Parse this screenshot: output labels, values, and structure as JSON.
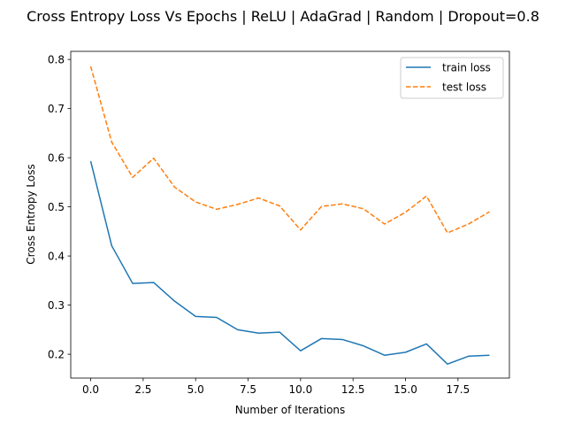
{
  "chart_data": {
    "type": "line",
    "title": "Cross Entropy Loss Vs Epochs | ReLU | AdaGrad | Random | Dropout=0.8",
    "xlabel": "Number of Iterations",
    "ylabel": "Cross Entropy Loss",
    "xlim": [
      -0.95,
      19.95
    ],
    "ylim": [
      0.1515,
      0.8165
    ],
    "x": [
      0,
      1,
      2,
      3,
      4,
      5,
      6,
      7,
      8,
      9,
      10,
      11,
      12,
      13,
      14,
      15,
      16,
      17,
      18,
      19
    ],
    "xticks": [
      0.0,
      2.5,
      5.0,
      7.5,
      10.0,
      12.5,
      15.0,
      17.5
    ],
    "xtick_labels": [
      "0.0",
      "2.5",
      "5.0",
      "7.5",
      "10.0",
      "12.5",
      "15.0",
      "17.5"
    ],
    "yticks": [
      0.2,
      0.3,
      0.4,
      0.5,
      0.6,
      0.7,
      0.8
    ],
    "ytick_labels": [
      "0.2",
      "0.3",
      "0.4",
      "0.5",
      "0.6",
      "0.7",
      "0.8"
    ],
    "grid": false,
    "legend_position": "top-right",
    "series": [
      {
        "name": "train loss",
        "color": "#1f77b4",
        "style": "solid",
        "values": [
          0.593,
          0.421,
          0.344,
          0.346,
          0.308,
          0.277,
          0.275,
          0.25,
          0.243,
          0.245,
          0.207,
          0.232,
          0.23,
          0.217,
          0.198,
          0.204,
          0.221,
          0.18,
          0.196,
          0.198
        ]
      },
      {
        "name": "test loss",
        "color": "#ff7f0e",
        "style": "dashed",
        "values": [
          0.786,
          0.632,
          0.56,
          0.599,
          0.54,
          0.51,
          0.495,
          0.505,
          0.518,
          0.502,
          0.453,
          0.501,
          0.506,
          0.496,
          0.465,
          0.489,
          0.522,
          0.447,
          0.465,
          0.49
        ]
      }
    ]
  }
}
